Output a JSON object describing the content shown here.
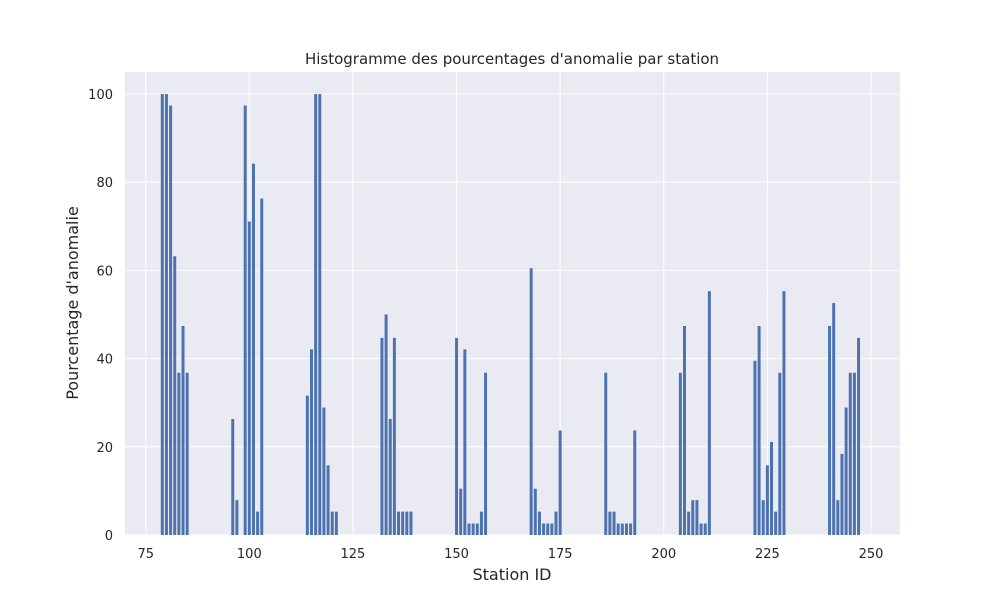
{
  "chart_data": {
    "type": "bar",
    "title": "Histogramme des pourcentages d'anomalie par station",
    "xlabel": "Station ID",
    "ylabel": "Pourcentage d'anomalie",
    "xlim": [
      70,
      257
    ],
    "ylim": [
      0,
      105
    ],
    "xticks": [
      75,
      100,
      125,
      150,
      175,
      200,
      225,
      250
    ],
    "yticks": [
      0,
      20,
      40,
      60,
      80,
      100
    ],
    "grid": true,
    "bar_color": "#4c72b0",
    "background_color": "#eaeaf2",
    "grid_color": "#ffffff",
    "bars": [
      {
        "x": 79,
        "y": 100
      },
      {
        "x": 80,
        "y": 100
      },
      {
        "x": 81,
        "y": 97.4
      },
      {
        "x": 82,
        "y": 63.2
      },
      {
        "x": 83,
        "y": 36.8
      },
      {
        "x": 84,
        "y": 47.4
      },
      {
        "x": 85,
        "y": 36.8
      },
      {
        "x": 96,
        "y": 26.3
      },
      {
        "x": 97,
        "y": 7.9
      },
      {
        "x": 99,
        "y": 97.4
      },
      {
        "x": 100,
        "y": 71.1
      },
      {
        "x": 101,
        "y": 84.2
      },
      {
        "x": 102,
        "y": 5.3
      },
      {
        "x": 103,
        "y": 76.3
      },
      {
        "x": 114,
        "y": 31.6
      },
      {
        "x": 115,
        "y": 42.1
      },
      {
        "x": 116,
        "y": 100
      },
      {
        "x": 117,
        "y": 100
      },
      {
        "x": 118,
        "y": 28.9
      },
      {
        "x": 119,
        "y": 15.8
      },
      {
        "x": 120,
        "y": 5.3
      },
      {
        "x": 121,
        "y": 5.3
      },
      {
        "x": 132,
        "y": 44.7
      },
      {
        "x": 133,
        "y": 50
      },
      {
        "x": 134,
        "y": 26.3
      },
      {
        "x": 135,
        "y": 44.7
      },
      {
        "x": 136,
        "y": 5.3
      },
      {
        "x": 137,
        "y": 5.3
      },
      {
        "x": 138,
        "y": 5.3
      },
      {
        "x": 139,
        "y": 5.3
      },
      {
        "x": 150,
        "y": 44.7
      },
      {
        "x": 151,
        "y": 10.5
      },
      {
        "x": 152,
        "y": 42.1
      },
      {
        "x": 153,
        "y": 2.6
      },
      {
        "x": 154,
        "y": 2.6
      },
      {
        "x": 155,
        "y": 2.6
      },
      {
        "x": 156,
        "y": 5.3
      },
      {
        "x": 157,
        "y": 36.8
      },
      {
        "x": 168,
        "y": 60.5
      },
      {
        "x": 169,
        "y": 10.5
      },
      {
        "x": 170,
        "y": 5.3
      },
      {
        "x": 171,
        "y": 2.6
      },
      {
        "x": 172,
        "y": 2.6
      },
      {
        "x": 173,
        "y": 2.6
      },
      {
        "x": 174,
        "y": 5.3
      },
      {
        "x": 175,
        "y": 23.7
      },
      {
        "x": 186,
        "y": 36.8
      },
      {
        "x": 187,
        "y": 5.3
      },
      {
        "x": 188,
        "y": 5.3
      },
      {
        "x": 189,
        "y": 2.6
      },
      {
        "x": 190,
        "y": 2.6
      },
      {
        "x": 191,
        "y": 2.6
      },
      {
        "x": 192,
        "y": 2.6
      },
      {
        "x": 193,
        "y": 23.7
      },
      {
        "x": 204,
        "y": 36.8
      },
      {
        "x": 205,
        "y": 47.4
      },
      {
        "x": 206,
        "y": 5.3
      },
      {
        "x": 207,
        "y": 7.9
      },
      {
        "x": 208,
        "y": 7.9
      },
      {
        "x": 209,
        "y": 2.6
      },
      {
        "x": 210,
        "y": 2.6
      },
      {
        "x": 211,
        "y": 55.3
      },
      {
        "x": 222,
        "y": 39.5
      },
      {
        "x": 223,
        "y": 47.4
      },
      {
        "x": 224,
        "y": 7.9
      },
      {
        "x": 225,
        "y": 15.8
      },
      {
        "x": 226,
        "y": 21.1
      },
      {
        "x": 227,
        "y": 5.3
      },
      {
        "x": 228,
        "y": 36.8
      },
      {
        "x": 229,
        "y": 55.3
      },
      {
        "x": 240,
        "y": 47.4
      },
      {
        "x": 241,
        "y": 52.6
      },
      {
        "x": 242,
        "y": 7.9
      },
      {
        "x": 243,
        "y": 18.4
      },
      {
        "x": 244,
        "y": 28.9
      },
      {
        "x": 245,
        "y": 36.8
      },
      {
        "x": 246,
        "y": 36.8
      },
      {
        "x": 247,
        "y": 44.7
      }
    ]
  }
}
